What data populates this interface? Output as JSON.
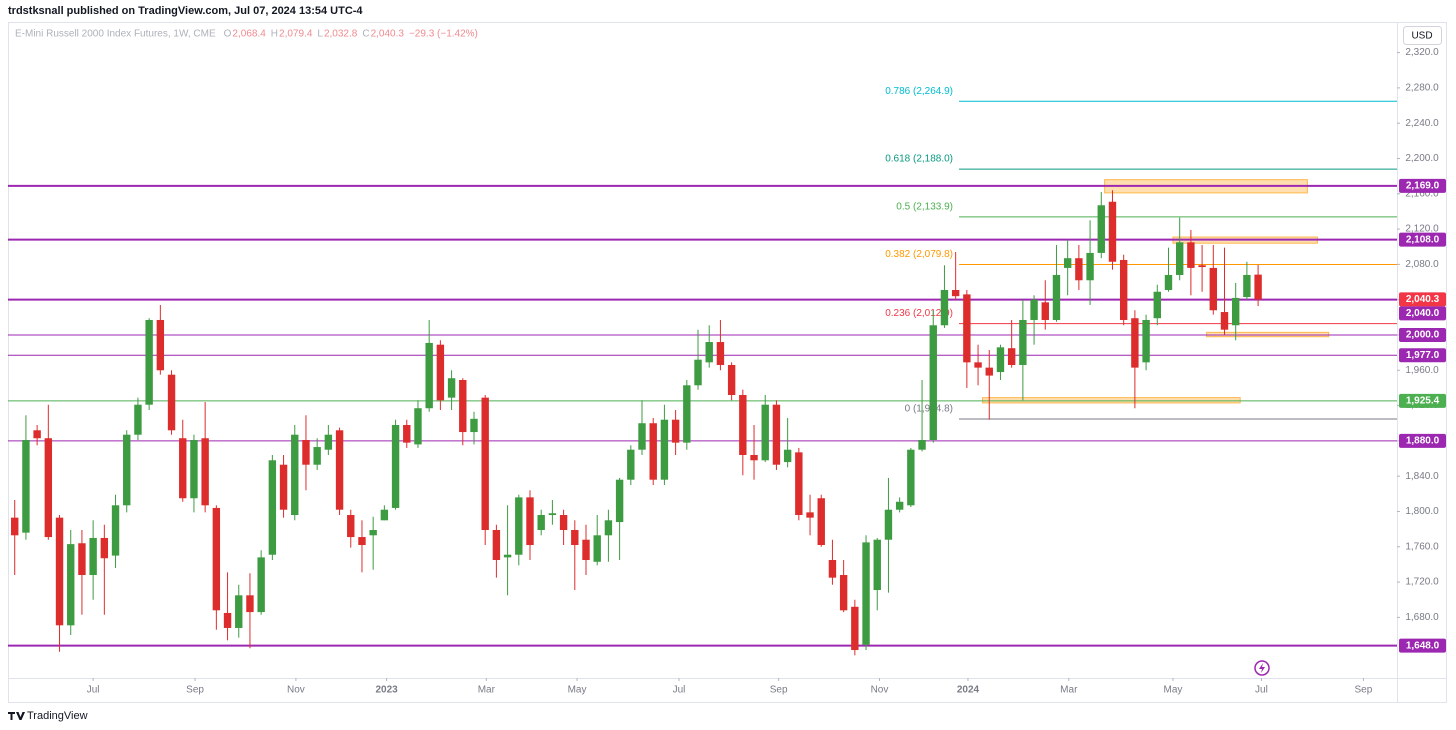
{
  "header": {
    "published": "trdstksnall published on TradingView.com, Jul 07, 2024 13:54 UTC-4",
    "currency": "USD",
    "brand": "TradingView"
  },
  "chart_data": {
    "type": "candlestick",
    "title": "E-Mini Russell 2000 Index Futures, 1W, CME",
    "ohlc_legend": [
      {
        "key": "O",
        "value": "2,068.4"
      },
      {
        "key": "H",
        "value": "2,079.4"
      },
      {
        "key": "L",
        "value": "2,032.8"
      },
      {
        "key": "C",
        "value": "2,040.3"
      }
    ],
    "change": "−29.3 (−1.42%)",
    "up_color": "#3d9b42",
    "down_color": "#dd2c2c",
    "open": [
      1793,
      1776,
      1892,
      1883,
      1793,
      1671,
      1764,
      1728,
      1770,
      1750,
      1807,
      1887,
      1921,
      2017,
      1955,
      1883,
      1815,
      1883,
      1804,
      1685,
      1668,
      1705,
      1686,
      1751,
      1853,
      1796,
      1881,
      1853,
      1870,
      1892,
      1796,
      1771,
      1773,
      1790,
      1804,
      1898,
      1876,
      1917,
      1989,
      1929,
      1949,
      1890,
      1929,
      1779,
      1748,
      1751,
      1816,
      1779,
      1796,
      1796,
      1779,
      1768,
      1743,
      1773,
      1788,
      1836,
      1870,
      1900,
      1836,
      1904,
      1878,
      1943,
      1969,
      1992,
      1966,
      1932,
      1864,
      1858,
      1921,
      1856,
      1867,
      1799,
      1815,
      1745,
      1728,
      1692,
      1649,
      1711,
      1768,
      1802,
      1807,
      1870,
      1881,
      2011,
      2051,
      2046,
      1969,
      1963,
      1958,
      1985,
      1966,
      2017,
      2037,
      2017,
      2076,
      2087,
      2062,
      2093,
      2151,
      2085,
      2019,
      1969,
      2019,
      2051,
      2068,
      2105,
      2079,
      2076,
      2026,
      2011,
      2043,
      2068.4
    ],
    "high": [
      1813,
      1909,
      1898,
      1921,
      1796,
      1779,
      1779,
      1790,
      1785,
      1819,
      1892,
      1929,
      2019,
      2034,
      1960,
      1904,
      1887,
      1924,
      1807,
      1731,
      1717,
      1730,
      1756,
      1864,
      1864,
      1898,
      1909,
      1883,
      1898,
      1895,
      1802,
      1790,
      1794,
      1807,
      1904,
      1904,
      1926,
      2017,
      1994,
      1960,
      1951,
      1913,
      1932,
      1785,
      1807,
      1819,
      1824,
      1802,
      1813,
      1802,
      1790,
      1785,
      1796,
      1802,
      1838,
      1875,
      1926,
      1906,
      1921,
      1915,
      1949,
      2006,
      2011,
      2017,
      1969,
      1938,
      1898,
      1932,
      1926,
      1906,
      1872,
      1819,
      1819,
      1768,
      1745,
      1700,
      1773,
      1770,
      1838,
      1816,
      1872,
      1949,
      2028,
      2079,
      2094,
      2051,
      1989,
      1983,
      1989,
      2017,
      2040,
      2045,
      2062,
      2102,
      2108,
      2102,
      2130,
      2162,
      2164,
      2091,
      2028,
      2023,
      2057,
      2099,
      2133,
      2119,
      2102,
      2102,
      2099,
      2059,
      2083,
      2079.4
    ],
    "low": [
      1728,
      1768,
      1875,
      1768,
      1641,
      1660,
      1683,
      1700,
      1683,
      1736,
      1799,
      1881,
      1915,
      1955,
      1887,
      1811,
      1799,
      1799,
      1666,
      1654,
      1657,
      1645,
      1683,
      1745,
      1793,
      1790,
      1824,
      1847,
      1864,
      1796,
      1759,
      1731,
      1734,
      1790,
      1802,
      1872,
      1872,
      1913,
      1915,
      1915,
      1875,
      1876,
      1762,
      1725,
      1705,
      1739,
      1745,
      1773,
      1785,
      1762,
      1711,
      1728,
      1739,
      1743,
      1745,
      1830,
      1864,
      1830,
      1830,
      1864,
      1870,
      1938,
      1963,
      1960,
      1926,
      1841,
      1836,
      1856,
      1847,
      1850,
      1790,
      1773,
      1760,
      1717,
      1686,
      1637,
      1643,
      1688,
      1708,
      1799,
      1805,
      1868,
      1878,
      2008,
      2040,
      1940,
      1943,
      1904,
      1949,
      1963,
      1926,
      1989,
      2006,
      2015,
      2045,
      2051,
      2034,
      2087,
      2074,
      2011,
      1917,
      1960,
      2011,
      2049,
      2062,
      2045,
      2049,
      2023,
      2000,
      1994,
      2040,
      2032.8
    ],
    "close": [
      1773,
      1881,
      1883,
      1771,
      1671,
      1763,
      1728,
      1770,
      1747,
      1807,
      1887,
      1921,
      2017,
      1960,
      1892,
      1815,
      1881,
      1807,
      1688,
      1668,
      1705,
      1686,
      1748,
      1858,
      1802,
      1887,
      1853,
      1873,
      1887,
      1802,
      1771,
      1762,
      1779,
      1802,
      1898,
      1878,
      1917,
      1991,
      1926,
      1951,
      1890,
      1905,
      1779,
      1745,
      1751,
      1816,
      1762,
      1796,
      1798,
      1779,
      1762,
      1745,
      1773,
      1790,
      1836,
      1870,
      1900,
      1836,
      1904,
      1878,
      1943,
      1972,
      1992,
      1966,
      1932,
      1864,
      1858,
      1921,
      1853,
      1870,
      1796,
      1793,
      1762,
      1725,
      1688,
      1643,
      1765,
      1768,
      1802,
      1811,
      1870,
      1881,
      2011,
      2051,
      2044,
      1969,
      1963,
      1954,
      1986,
      1966,
      2017,
      2040,
      2017,
      2068,
      2087,
      2062,
      2093,
      2147,
      2083,
      2017,
      1963,
      2017,
      2049,
      2068,
      2105,
      2076,
      2077,
      2028,
      2006,
      2042,
      2068,
      2040.3
    ],
    "xlim": [
      -0.6,
      123.4
    ],
    "xticks": [
      {
        "value": 7.0,
        "label": "Jul"
      },
      {
        "value": 16.1,
        "label": "Sep"
      },
      {
        "value": 25.1,
        "label": "Nov"
      },
      {
        "value": 33.2,
        "label": "2023"
      },
      {
        "value": 42.1,
        "label": "Mar"
      },
      {
        "value": 50.2,
        "label": "May"
      },
      {
        "value": 59.3,
        "label": "Jul"
      },
      {
        "value": 68.2,
        "label": "Sep"
      },
      {
        "value": 77.2,
        "label": "Nov"
      },
      {
        "value": 85.1,
        "label": "2024"
      },
      {
        "value": 94.1,
        "label": "Mar"
      },
      {
        "value": 103.4,
        "label": "May"
      },
      {
        "value": 111.3,
        "label": "Jul"
      },
      {
        "value": 120.4,
        "label": "Sep"
      }
    ],
    "ylim": [
      1611.3,
      2345.6
    ],
    "yticks": [
      {
        "value": 1680,
        "label": "1,680.0"
      },
      {
        "value": 1720,
        "label": "1,720.0"
      },
      {
        "value": 1760,
        "label": "1,760.0"
      },
      {
        "value": 1800,
        "label": "1,800.0"
      },
      {
        "value": 1840,
        "label": "1,840.0"
      },
      {
        "value": 1880,
        "label": "1,880.0"
      },
      {
        "value": 1920,
        "label": "1,920.0"
      },
      {
        "value": 1960,
        "label": "1,960.0"
      },
      {
        "value": 2000,
        "label": "2,000.0"
      },
      {
        "value": 2040,
        "label": "2,040.0"
      },
      {
        "value": 2080,
        "label": "2,080.0"
      },
      {
        "value": 2120,
        "label": "2,120.0"
      },
      {
        "value": 2160,
        "label": "2,160.0"
      },
      {
        "value": 2200,
        "label": "2,200.0"
      },
      {
        "value": 2240,
        "label": "2,240.0"
      },
      {
        "value": 2280,
        "label": "2,280.0"
      },
      {
        "value": 2320,
        "label": "2,320.0"
      }
    ],
    "levels": [
      {
        "value": 2169,
        "label": "2,169.0",
        "color": "#9c27b0",
        "width": 2
      },
      {
        "value": 2108,
        "label": "2,108.0",
        "color": "#9c27b0",
        "width": 2
      },
      {
        "value": 2040.3,
        "label": "2,040.3",
        "color": "#f23645",
        "width": 0
      },
      {
        "value": 2040,
        "label": "2,040.0",
        "color": "#9c27b0",
        "width": 2
      },
      {
        "value": 2000,
        "label": "2,000.0",
        "color": "#9c27b0",
        "width": 1
      },
      {
        "value": 1977,
        "label": "1,977.0",
        "color": "#9c27b0",
        "width": 1
      },
      {
        "value": 1925.4,
        "label": "1,925.4",
        "color": "#4caf50",
        "width": 1
      },
      {
        "value": 1880,
        "label": "1,880.0",
        "color": "#9c27b0",
        "width": 1
      },
      {
        "value": 1648,
        "label": "1,648.0",
        "color": "#9c27b0",
        "width": 2
      }
    ],
    "fib": {
      "start": 84.3,
      "levels": [
        {
          "value": 2264.9,
          "label": "0.786 (2,264.9)",
          "color": "#00bcd4"
        },
        {
          "value": 2188.0,
          "label": "0.618 (2,188.0)",
          "color": "#089981"
        },
        {
          "value": 2133.9,
          "label": "0.5 (2,133.9)",
          "color": "#4caf50"
        },
        {
          "value": 2079.8,
          "label": "0.382 (2,079.8)",
          "color": "#ff9800"
        },
        {
          "value": 2012.9,
          "label": "0.236 (2,012.9)",
          "color": "#f23645"
        },
        {
          "value": 1904.8,
          "label": "0 (1,904.8)",
          "color": "#787b86"
        }
      ]
    },
    "zones": [
      {
        "x": [
          97.3,
          115.4
        ],
        "y": [
          2161,
          2176
        ]
      },
      {
        "x": [
          103.4,
          116.3
        ],
        "y": [
          2104,
          2111
        ]
      },
      {
        "x": [
          106.4,
          117.3
        ],
        "y": [
          1998,
          2003
        ]
      },
      {
        "x": [
          86.4,
          109.4
        ],
        "y": [
          1923,
          1929
        ]
      }
    ]
  }
}
